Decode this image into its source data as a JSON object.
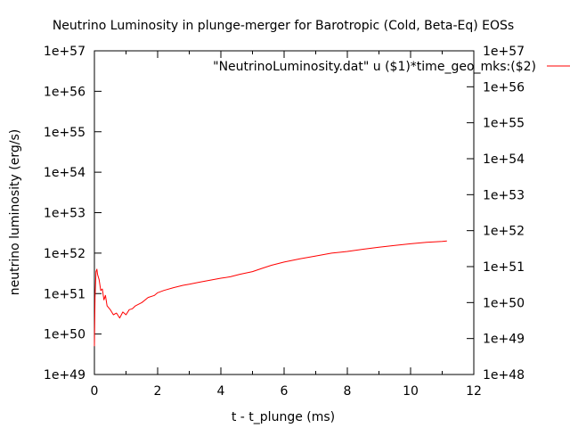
{
  "chart_data": {
    "type": "line",
    "title": "Neutrino Luminosity in plunge-merger for Barotropic (Cold, Beta-Eq) EOSs",
    "xlabel": "t - t_plunge (ms)",
    "ylabel": "neutrino luminosity (erg/s)",
    "xlim": [
      0,
      12
    ],
    "ylim": [
      1e+49,
      1e+57
    ],
    "y2lim": [
      1e+48,
      1e+57
    ],
    "yscale": "log",
    "grid": false,
    "legend_position": "top-right",
    "x_ticks": [
      "0",
      "2",
      "4",
      "6",
      "8",
      "10",
      "12"
    ],
    "y_ticks": [
      "1e+49",
      "1e+50",
      "1e+51",
      "1e+52",
      "1e+53",
      "1e+54",
      "1e+55",
      "1e+56",
      "1e+57"
    ],
    "y2_ticks": [
      "1e+48",
      "1e+49",
      "1e+50",
      "1e+51",
      "1e+52",
      "1e+53",
      "1e+54",
      "1e+55",
      "1e+56",
      "1e+57"
    ],
    "series": [
      {
        "name": "\"NeutrinoLuminosity.dat\" u ($1)*time_geo_mks:($2)",
        "color": "#ff0000",
        "x": [
          0.0,
          0.02,
          0.05,
          0.08,
          0.1,
          0.15,
          0.2,
          0.25,
          0.3,
          0.35,
          0.4,
          0.5,
          0.6,
          0.7,
          0.8,
          0.9,
          1.0,
          1.1,
          1.2,
          1.3,
          1.5,
          1.7,
          1.9,
          2.0,
          2.2,
          2.5,
          2.8,
          3.0,
          3.3,
          3.6,
          4.0,
          4.3,
          4.6,
          5.0,
          5.3,
          5.6,
          6.0,
          6.5,
          7.0,
          7.5,
          8.0,
          8.5,
          9.0,
          9.5,
          10.0,
          10.5,
          11.0,
          11.15
        ],
        "y": [
          5e+49,
          8e+50,
          3.5e+51,
          4e+51,
          3e+51,
          2.2e+51,
          1.2e+51,
          1.3e+51,
          7e+50,
          9e+50,
          5e+50,
          4e+50,
          3e+50,
          3.3e+50,
          2.5e+50,
          3.5e+50,
          3e+50,
          4e+50,
          4.2e+50,
          5e+50,
          6e+50,
          8e+50,
          9e+50,
          1.05e+51,
          1.2e+51,
          1.4e+51,
          1.6e+51,
          1.7e+51,
          1.9e+51,
          2.1e+51,
          2.4e+51,
          2.6e+51,
          3e+51,
          3.5e+51,
          4.2e+51,
          5e+51,
          6e+51,
          7.2e+51,
          8.5e+51,
          1e+52,
          1.1e+52,
          1.25e+52,
          1.4e+52,
          1.55e+52,
          1.7e+52,
          1.85e+52,
          1.95e+52,
          2e+52
        ]
      }
    ]
  }
}
